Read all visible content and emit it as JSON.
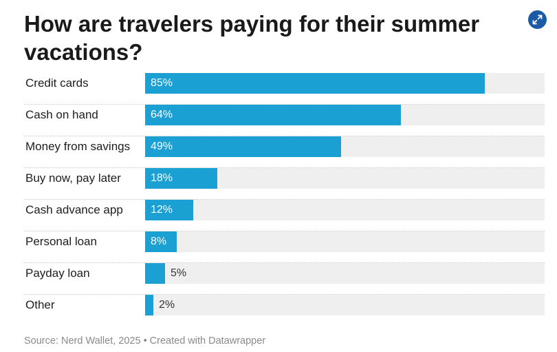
{
  "title": "How are travelers paying for their summer vacations?",
  "expand_icon": "expand-arrows-icon",
  "colors": {
    "bar": "#1aa0d2",
    "track": "#efefef",
    "button": "#1c5aa6"
  },
  "footer": {
    "source": "Source: Nerd Wallet, 2025",
    "separator": "•",
    "credit": "Created with Datawrapper"
  },
  "chart_data": {
    "type": "bar",
    "orientation": "horizontal",
    "title": "How are travelers paying for their summer vacations?",
    "categories": [
      "Credit cards",
      "Cash on hand",
      "Money from savings",
      "Buy now, pay later",
      "Cash advance app",
      "Personal loan",
      "Payday loan",
      "Other"
    ],
    "values": [
      85,
      64,
      49,
      18,
      12,
      8,
      5,
      2
    ],
    "labels": [
      "85%",
      "64%",
      "49%",
      "18%",
      "12%",
      "8%",
      "5%",
      "2%"
    ],
    "xlim": [
      0,
      100
    ],
    "grid": false,
    "legend": "none"
  }
}
